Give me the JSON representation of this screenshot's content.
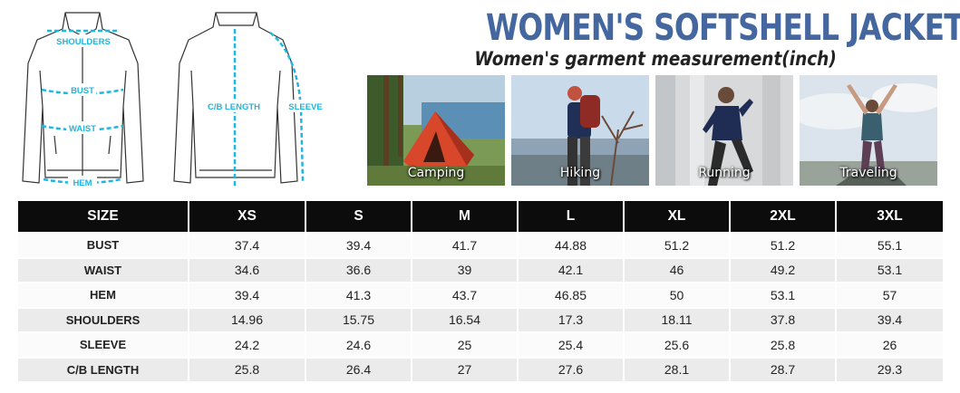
{
  "title": "WOMEN'S SOFTSHELL JACKET",
  "subtitle": "Women's garment measurement(inch)",
  "diagram": {
    "labels": {
      "shoulders": "SHOULDERS",
      "bust": "BUST",
      "waist": "WAIST",
      "hem": "HEM",
      "cb_length": "C/B LENGTH",
      "sleeve": "SLEEVE"
    },
    "accent_color": "#1fb6e0"
  },
  "activities": [
    {
      "label": "Camping"
    },
    {
      "label": "Hiking"
    },
    {
      "label": "Running"
    },
    {
      "label": "Traveling"
    }
  ],
  "table": {
    "headers": [
      "SIZE",
      "XS",
      "S",
      "M",
      "L",
      "XL",
      "2XL",
      "3XL"
    ],
    "rows": [
      {
        "name": "BUST",
        "values": [
          "37.4",
          "39.4",
          "41.7",
          "44.88",
          "51.2",
          "51.2",
          "55.1"
        ]
      },
      {
        "name": "WAIST",
        "values": [
          "34.6",
          "36.6",
          "39",
          "42.1",
          "46",
          "49.2",
          "53.1"
        ]
      },
      {
        "name": "HEM",
        "values": [
          "39.4",
          "41.3",
          "43.7",
          "46.85",
          "50",
          "53.1",
          "57"
        ]
      },
      {
        "name": "SHOULDERS",
        "values": [
          "14.96",
          "15.75",
          "16.54",
          "17.3",
          "18.11",
          "37.8",
          "39.4"
        ]
      },
      {
        "name": "SLEEVE",
        "values": [
          "24.2",
          "24.6",
          "25",
          "25.4",
          "25.6",
          "25.8",
          "26"
        ]
      },
      {
        "name": "C/B LENGTH",
        "values": [
          "25.8",
          "26.4",
          "27",
          "27.6",
          "28.1",
          "28.7",
          "29.3"
        ]
      }
    ]
  },
  "colors": {
    "title": "#44679f",
    "subtitle": "#111111",
    "header_bg": "#0c0c0c",
    "row_light": "#fbfbfb",
    "row_dark": "#ebebeb"
  }
}
